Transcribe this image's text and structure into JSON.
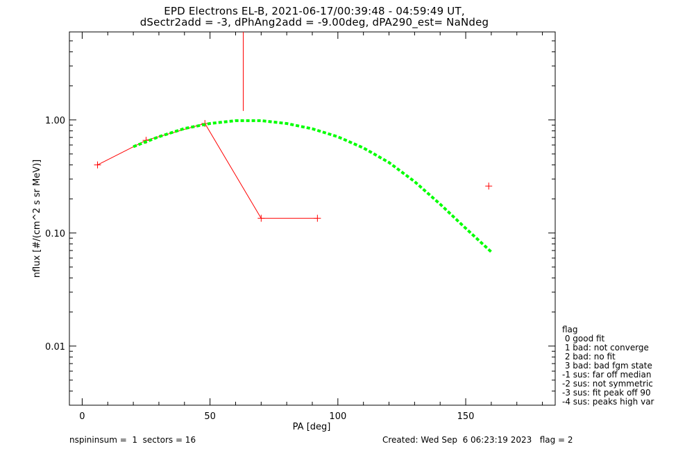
{
  "title_line1": "EPD Electrons EL-B, 2021-06-17/00:39:48 - 04:59:49 UT,",
  "title_line2": "dSectr2add = -3, dPhAng2add = -9.00deg, dPA290_est=   NaNdeg",
  "footer": {
    "left": "nspininsum =  1  sectors = 16",
    "right": "Created: Wed Sep  6 06:23:19 2023   flag = 2"
  },
  "legend": {
    "header": "flag",
    "items": [
      " 0 good fit",
      " 1 bad: not converge",
      " 2 bad: no fit",
      " 3 bad: bad fgm state",
      "-1 sus: far off median",
      "-2 sus: not symmetric",
      "-3 sus: fit peak off 90",
      "-4 sus: peaks high var"
    ]
  },
  "chart_data": {
    "type": "line",
    "title": "EPD Electrons EL-B, 2021-06-17/00:39:48 - 04:59:49 UT,",
    "subtitle": "dSectr2add = -3, dPhAng2add = -9.00deg, dPA290_est=   NaNdeg",
    "xlabel": "PA [deg]",
    "ylabel": "nflux [#/(cm^2 s sr MeV)]",
    "xlim": [
      -5,
      185
    ],
    "ylim": [
      0.003,
      6
    ],
    "yscale": "log",
    "xticks": [
      0,
      50,
      100,
      150
    ],
    "xtick_labels": [
      "0",
      "50",
      "100",
      "150"
    ],
    "yticks": [
      0.01,
      0.1,
      1.0
    ],
    "ytick_labels": [
      "0.01",
      "0.10",
      "1.00"
    ],
    "grid": false,
    "colors": {
      "data": "#ff0000",
      "fit": "#00ff00"
    },
    "series": [
      {
        "style": "red-line-plus",
        "x": [
          6,
          25,
          48,
          70,
          92
        ],
        "y": [
          0.4,
          0.66,
          0.93,
          0.135,
          0.135
        ]
      },
      {
        "style": "red-plus-isolated",
        "x": [
          159
        ],
        "y": [
          0.26
        ]
      },
      {
        "style": "red-vertical-segment",
        "x": [
          63,
          63
        ],
        "y": [
          1.2,
          6
        ]
      },
      {
        "style": "green-dashed-fit",
        "x": [
          20,
          30,
          40,
          50,
          60,
          70,
          80,
          90,
          100,
          110,
          120,
          130,
          140,
          150,
          160
        ],
        "y": [
          0.58,
          0.71,
          0.84,
          0.93,
          0.985,
          0.985,
          0.93,
          0.835,
          0.71,
          0.565,
          0.42,
          0.285,
          0.18,
          0.11,
          0.068
        ]
      }
    ]
  }
}
